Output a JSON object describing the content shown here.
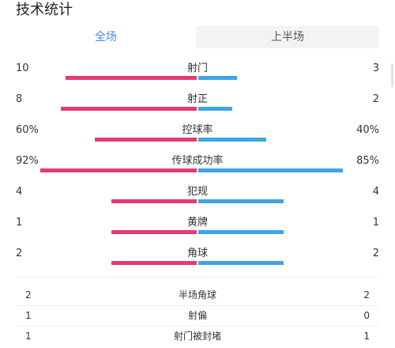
{
  "header": {
    "title": "技术统计"
  },
  "tabs": [
    {
      "label": "全场",
      "active": true
    },
    {
      "label": "上半场",
      "active": false
    }
  ],
  "colors": {
    "home_bar": "#e63a6d",
    "away_bar": "#3fa4e6",
    "active_tab": "#3a8ee6"
  },
  "stats": [
    {
      "label": "射门",
      "home": "10",
      "away": "3",
      "home_share": 0.77,
      "away_share": 0.23
    },
    {
      "label": "射正",
      "home": "8",
      "away": "2",
      "home_share": 0.8,
      "away_share": 0.2
    },
    {
      "label": "控球率",
      "home": "60%",
      "away": "40%",
      "home_share": 0.6,
      "away_share": 0.4
    },
    {
      "label": "传球成功率",
      "home": "92%",
      "away": "85%",
      "home_share": 0.92,
      "away_share": 0.85
    },
    {
      "label": "犯规",
      "home": "4",
      "away": "4",
      "home_share": 0.5,
      "away_share": 0.5
    },
    {
      "label": "黄牌",
      "home": "1",
      "away": "1",
      "home_share": 0.5,
      "away_share": 0.5
    },
    {
      "label": "角球",
      "home": "2",
      "away": "2",
      "home_share": 0.5,
      "away_share": 0.5
    }
  ],
  "list": [
    {
      "label": "半场角球",
      "home": "2",
      "away": "2"
    },
    {
      "label": "射偏",
      "home": "1",
      "away": "0"
    },
    {
      "label": "射门被封堵",
      "home": "1",
      "away": "1"
    }
  ]
}
